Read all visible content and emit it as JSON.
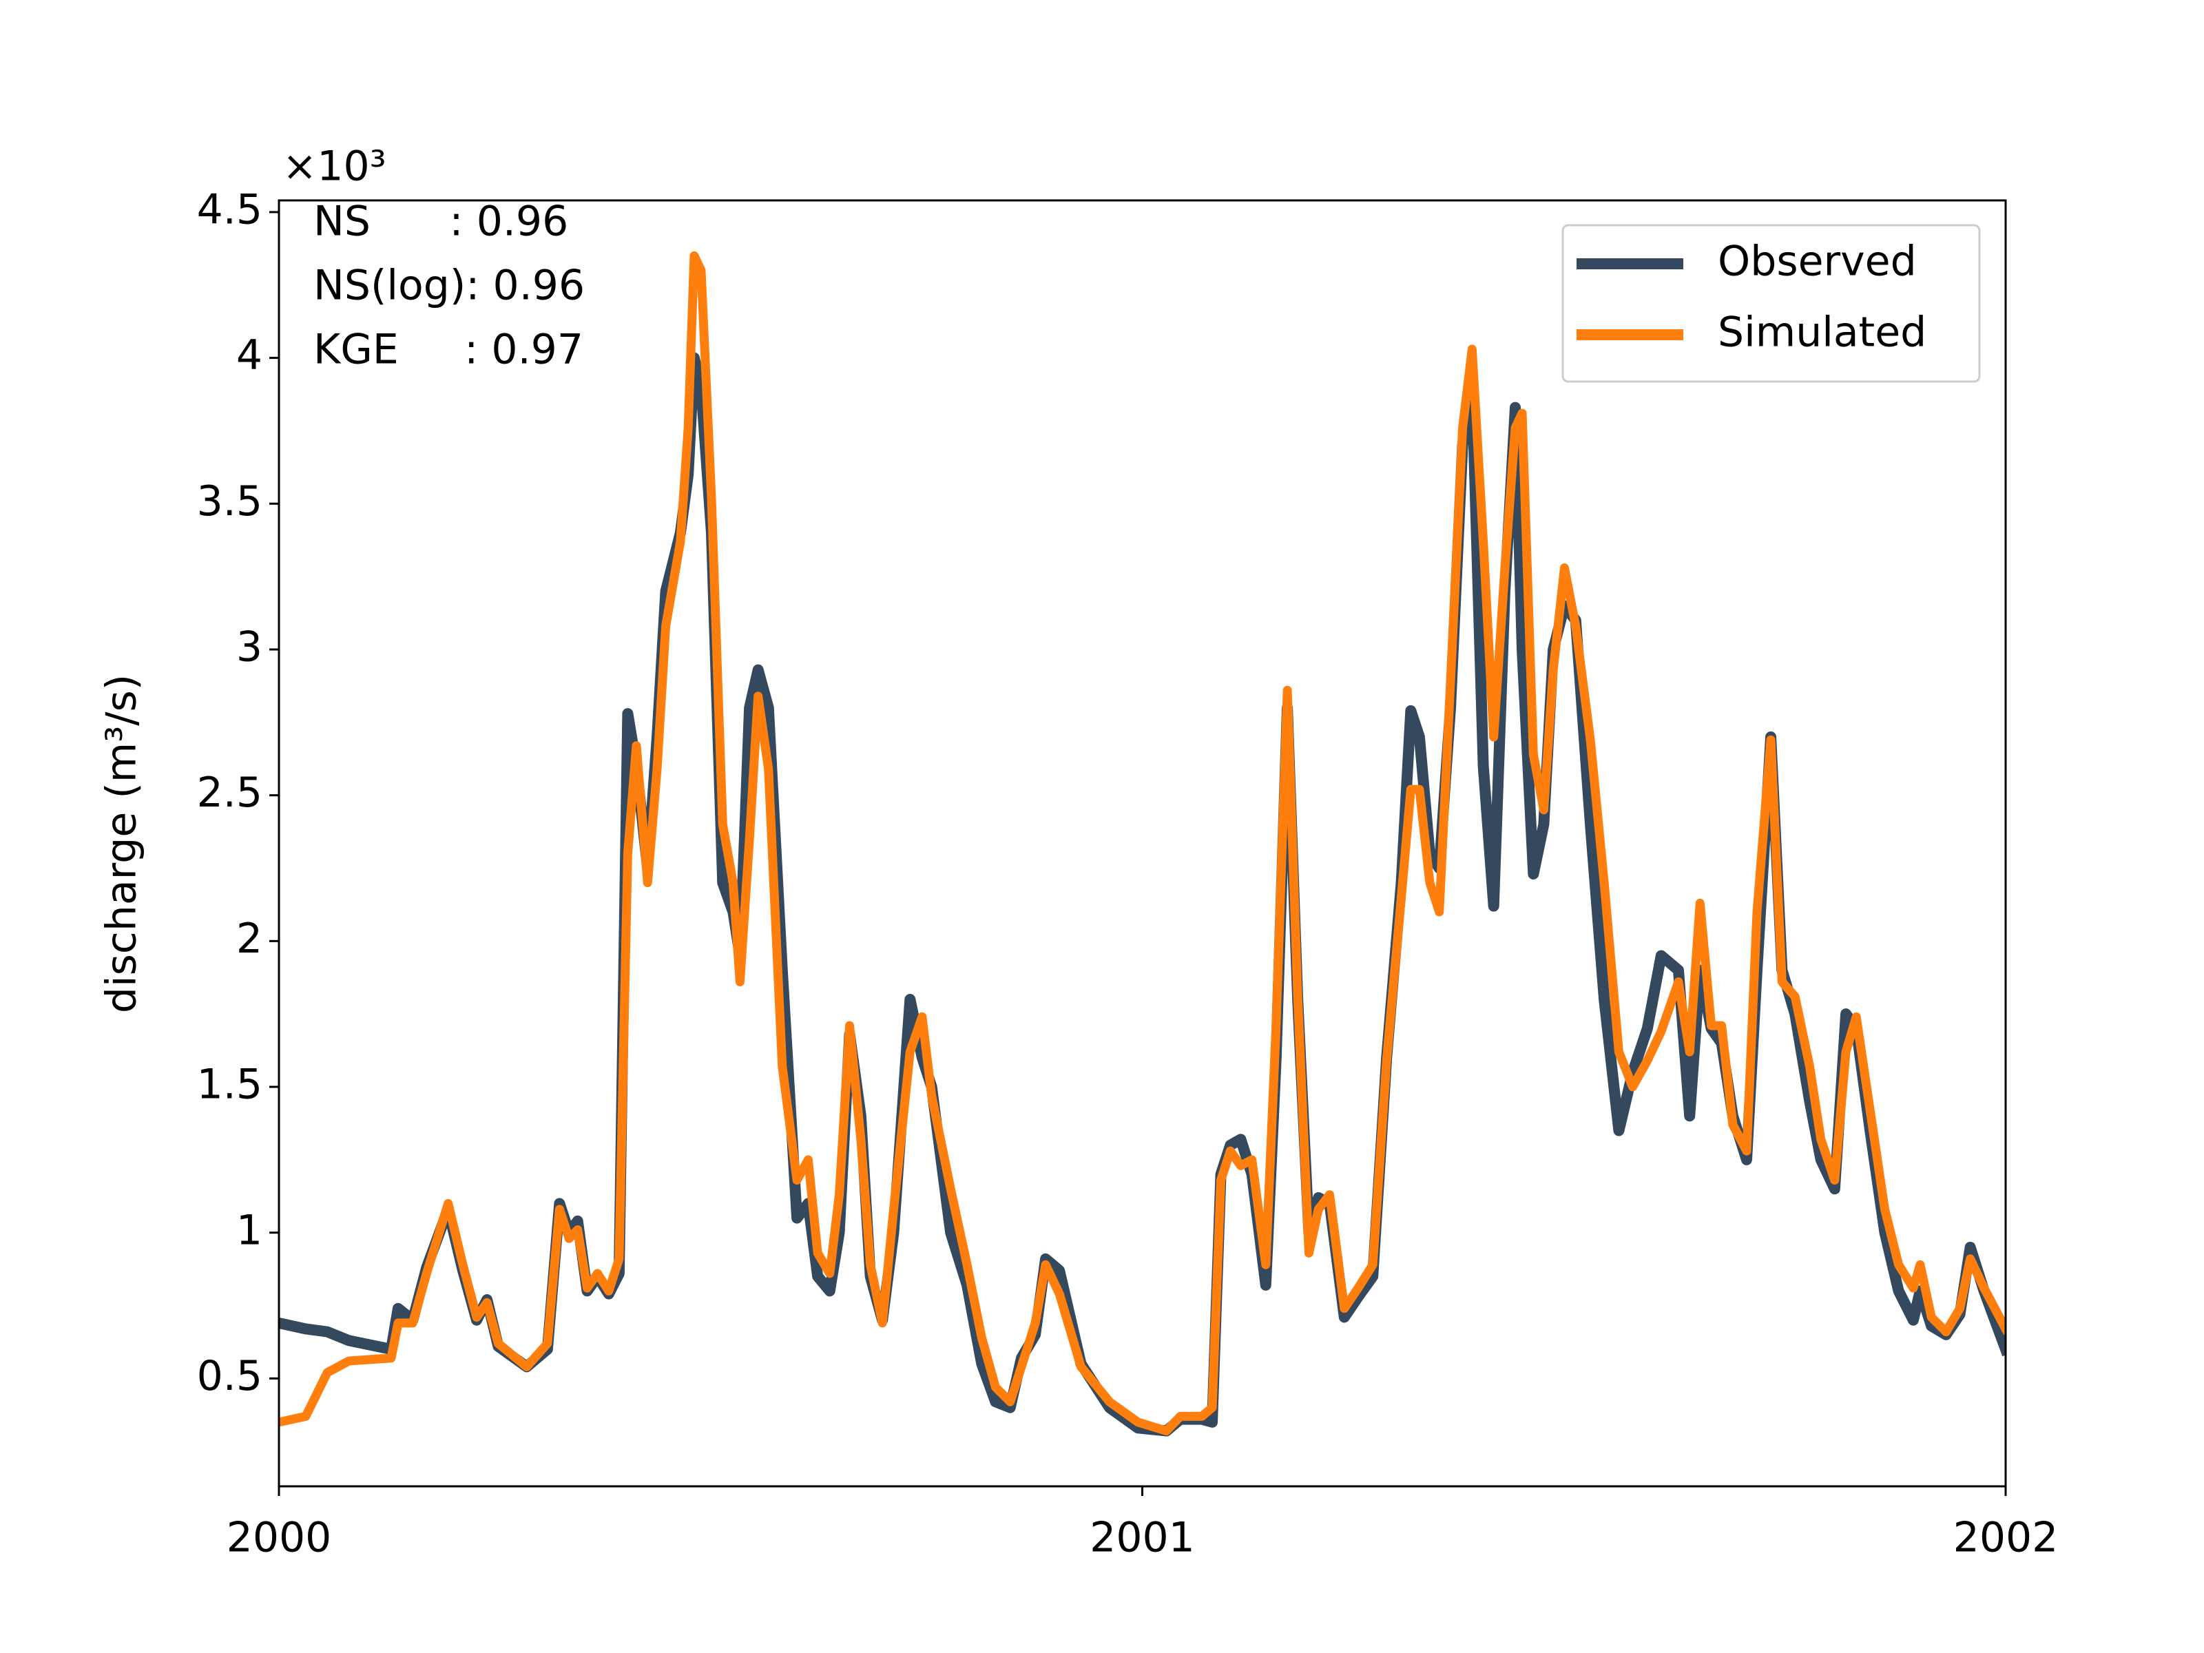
{
  "chart_data": {
    "type": "line",
    "offset_label": "×10³",
    "ylabel": "discharge (m³/s)",
    "annotations": [
      "NS      : 0.96",
      "NS(log): 0.96",
      "KGE     : 0.97"
    ],
    "legend": "upper right",
    "x": [
      2000,
      2000.031,
      2000.056,
      2000.081,
      2000.13,
      2000.138,
      2000.155,
      2000.171,
      2000.196,
      2000.213,
      2000.229,
      2000.241,
      2000.254,
      2000.287,
      2000.311,
      2000.325,
      2000.336,
      2000.346,
      2000.357,
      2000.369,
      2000.382,
      2000.394,
      2000.404,
      2000.414,
      2000.427,
      2000.438,
      2000.448,
      2000.465,
      2000.474,
      2000.481,
      2000.489,
      2000.501,
      2000.514,
      2000.526,
      2000.534,
      2000.545,
      2000.555,
      2000.567,
      2000.583,
      2000.6,
      2000.613,
      2000.624,
      2000.638,
      2000.649,
      2000.661,
      2000.674,
      2000.685,
      2000.699,
      2000.712,
      2000.731,
      2000.745,
      2000.756,
      2000.778,
      2000.797,
      2000.814,
      2000.83,
      2000.847,
      2000.86,
      2000.876,
      2000.888,
      2000.904,
      2000.929,
      2000.962,
      2000.995,
      2001.028,
      2001.044,
      2001.069,
      2001.081,
      2001.091,
      2001.102,
      2001.114,
      2001.127,
      2001.143,
      2001.155,
      2001.168,
      2001.18,
      2001.193,
      2001.204,
      2001.217,
      2001.234,
      2001.25,
      2001.267,
      2001.283,
      2001.3,
      2001.311,
      2001.321,
      2001.333,
      2001.344,
      2001.357,
      2001.371,
      2001.382,
      2001.395,
      2001.407,
      2001.42,
      2001.432,
      2001.44,
      2001.453,
      2001.465,
      2001.476,
      2001.489,
      2001.502,
      2001.519,
      2001.535,
      2001.552,
      2001.568,
      2001.585,
      2001.601,
      2001.621,
      2001.634,
      2001.646,
      2001.659,
      2001.671,
      2001.684,
      2001.7,
      2001.712,
      2001.728,
      2001.741,
      2001.756,
      2001.773,
      2001.786,
      2001.802,
      2001.815,
      2001.827,
      2001.843,
      2001.86,
      2001.876,
      2001.893,
      2001.901,
      2001.914,
      2001.931,
      2001.947,
      2001.959,
      2001.975,
      2002
    ],
    "series": [
      {
        "name": "Observed",
        "color": "#34495e",
        "values": [
          0.69,
          0.67,
          0.66,
          0.63,
          0.6,
          0.74,
          0.7,
          0.88,
          1.08,
          0.87,
          0.7,
          0.77,
          0.61,
          0.54,
          0.6,
          1.1,
          1.0,
          1.04,
          0.8,
          0.85,
          0.79,
          0.86,
          2.78,
          2.6,
          2.25,
          2.7,
          3.2,
          3.4,
          3.6,
          4.0,
          3.9,
          3.4,
          2.2,
          2.1,
          1.95,
          2.8,
          2.93,
          2.8,
          1.9,
          1.05,
          1.1,
          0.85,
          0.8,
          1.0,
          1.68,
          1.4,
          0.85,
          0.7,
          1.0,
          1.8,
          1.6,
          1.5,
          1.0,
          0.82,
          0.55,
          0.42,
          0.4,
          0.57,
          0.65,
          0.91,
          0.87,
          0.55,
          0.4,
          0.33,
          0.32,
          0.36,
          0.36,
          0.35,
          1.2,
          1.3,
          1.32,
          1.2,
          0.82,
          1.6,
          2.8,
          1.8,
          1.0,
          1.12,
          1.1,
          0.71,
          0.78,
          0.85,
          1.6,
          2.2,
          2.79,
          2.7,
          2.3,
          2.25,
          2.8,
          3.7,
          3.9,
          2.6,
          2.12,
          3.2,
          3.83,
          3.0,
          2.23,
          2.4,
          3.0,
          3.15,
          3.1,
          2.4,
          1.8,
          1.35,
          1.55,
          1.7,
          1.95,
          1.9,
          1.4,
          1.9,
          1.7,
          1.65,
          1.4,
          1.25,
          1.9,
          2.7,
          1.9,
          1.75,
          1.45,
          1.25,
          1.15,
          1.75,
          1.7,
          1.35,
          1.0,
          0.8,
          0.7,
          0.8,
          0.68,
          0.65,
          0.72,
          0.95,
          0.8,
          0.6
        ]
      },
      {
        "name": "Simulated",
        "color": "#ff7f0e",
        "values": [
          0.35,
          0.37,
          0.52,
          0.56,
          0.57,
          0.69,
          0.69,
          0.86,
          1.1,
          0.89,
          0.71,
          0.76,
          0.62,
          0.54,
          0.62,
          1.08,
          0.98,
          1.01,
          0.81,
          0.86,
          0.8,
          0.91,
          2.3,
          2.67,
          2.2,
          2.59,
          3.08,
          3.37,
          3.76,
          4.35,
          4.3,
          3.52,
          2.4,
          2.2,
          1.86,
          2.35,
          2.84,
          2.59,
          1.57,
          1.18,
          1.25,
          0.93,
          0.86,
          1.13,
          1.71,
          1.32,
          0.89,
          0.69,
          1.08,
          1.62,
          1.74,
          1.47,
          1.15,
          0.89,
          0.64,
          0.47,
          0.42,
          0.54,
          0.69,
          0.89,
          0.79,
          0.54,
          0.42,
          0.35,
          0.32,
          0.37,
          0.37,
          0.4,
          1.18,
          1.28,
          1.23,
          1.25,
          0.89,
          1.71,
          2.86,
          1.81,
          0.93,
          1.08,
          1.13,
          0.74,
          0.81,
          0.89,
          1.59,
          2.15,
          2.52,
          2.52,
          2.2,
          2.1,
          2.89,
          3.76,
          4.03,
          3.37,
          2.7,
          3.28,
          3.76,
          3.81,
          2.64,
          2.45,
          2.93,
          3.28,
          3.08,
          2.69,
          2.2,
          1.62,
          1.5,
          1.59,
          1.69,
          1.86,
          1.62,
          2.13,
          1.71,
          1.71,
          1.37,
          1.28,
          2.1,
          2.69,
          1.86,
          1.81,
          1.57,
          1.32,
          1.18,
          1.62,
          1.74,
          1.42,
          1.08,
          0.89,
          0.81,
          0.89,
          0.71,
          0.66,
          0.74,
          0.91,
          0.81,
          0.67
        ]
      }
    ],
    "xlim": [
      2000,
      2002
    ],
    "xticks": [
      2000,
      2001,
      2002
    ],
    "ylim": [
      0.13,
      4.54
    ],
    "yticks": [
      0.5,
      1.0,
      1.5,
      2.0,
      2.5,
      3.0,
      3.5,
      4.0,
      4.5
    ]
  }
}
